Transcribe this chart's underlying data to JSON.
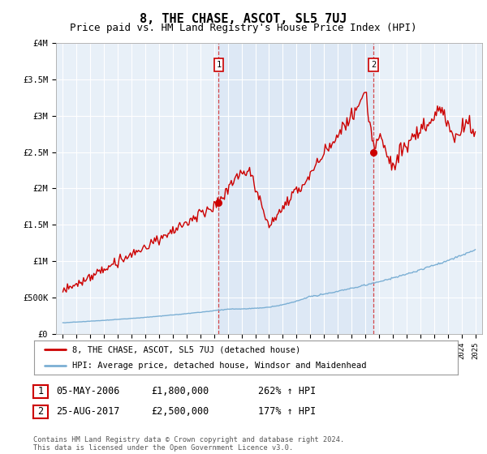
{
  "title": "8, THE CHASE, ASCOT, SL5 7UJ",
  "subtitle": "Price paid vs. HM Land Registry's House Price Index (HPI)",
  "title_fontsize": 11,
  "subtitle_fontsize": 9,
  "bg_color": "#e8f0f8",
  "transaction1_date": "05-MAY-2006",
  "transaction1_price": 1800000,
  "transaction1_label": "262% ↑ HPI",
  "transaction2_date": "25-AUG-2017",
  "transaction2_price": 2500000,
  "transaction2_label": "177% ↑ HPI",
  "legend_line1": "8, THE CHASE, ASCOT, SL5 7UJ (detached house)",
  "legend_line2": "HPI: Average price, detached house, Windsor and Maidenhead",
  "footnote": "Contains HM Land Registry data © Crown copyright and database right 2024.\nThis data is licensed under the Open Government Licence v3.0.",
  "ylim": [
    0,
    4000000
  ],
  "yticks": [
    0,
    500000,
    1000000,
    1500000,
    2000000,
    2500000,
    3000000,
    3500000,
    4000000
  ],
  "ytick_labels": [
    "£0",
    "£500K",
    "£1M",
    "£1.5M",
    "£2M",
    "£2.5M",
    "£3M",
    "£3.5M",
    "£4M"
  ],
  "xlim_start": 1994.5,
  "xlim_end": 2025.5,
  "red_color": "#cc0000",
  "blue_color": "#7bafd4",
  "shade_color": "#dce8f5"
}
